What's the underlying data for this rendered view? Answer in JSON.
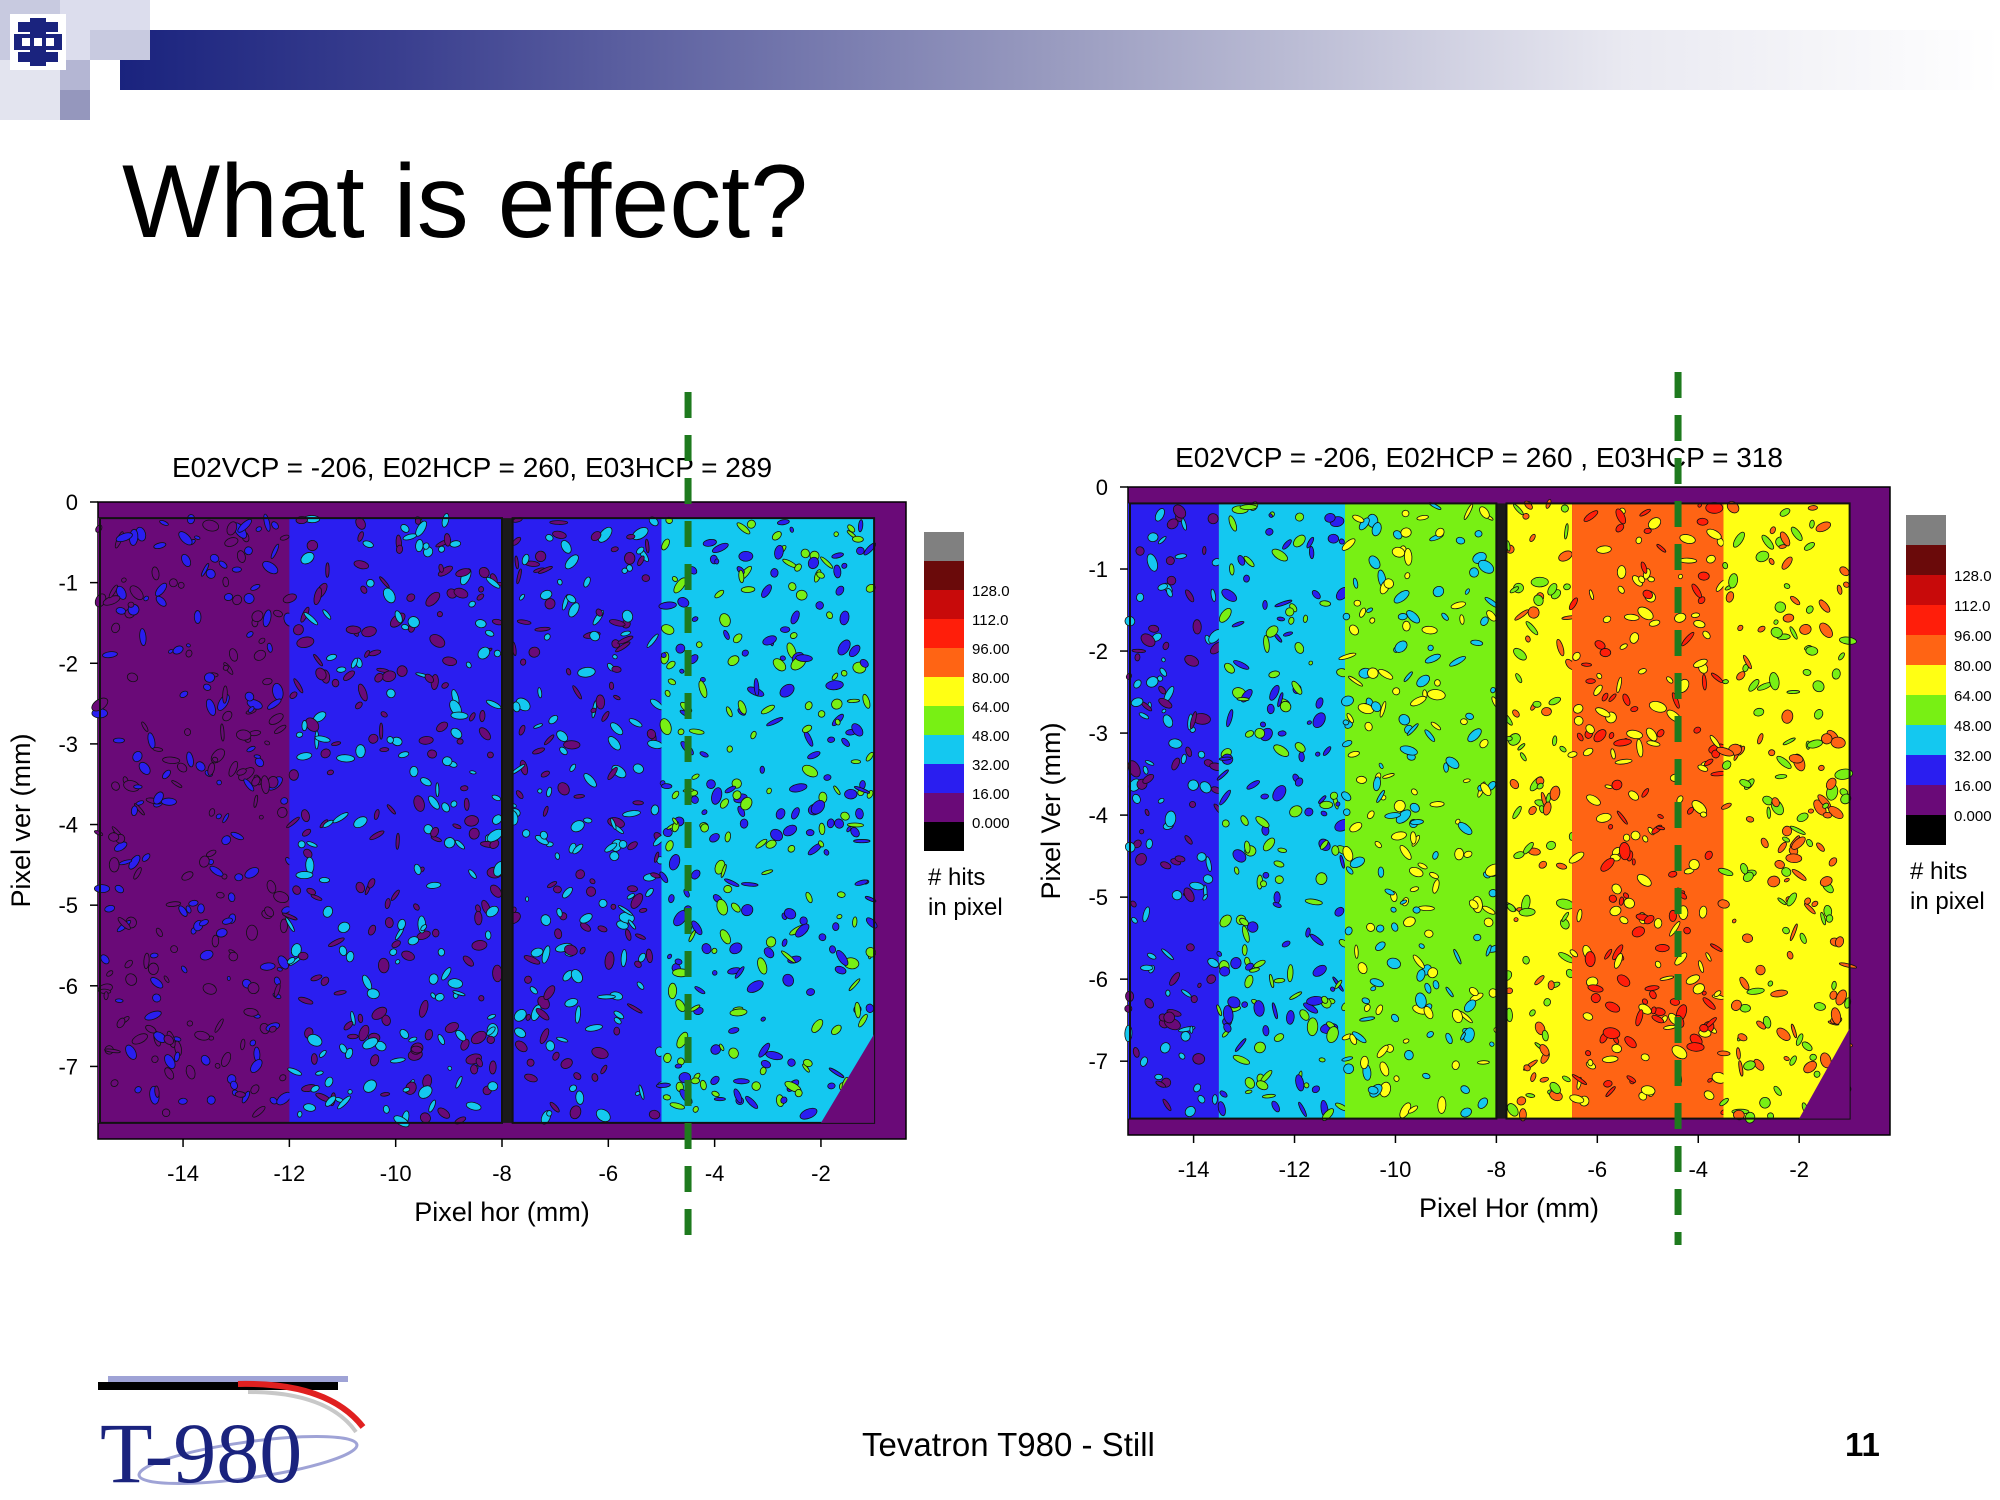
{
  "slide": {
    "title": "What is effect?",
    "footer": "Tevatron T980 - Still",
    "page_number": "11",
    "logo_text": "T-980"
  },
  "colors": {
    "accent": "#1a237e",
    "guide_line": "#1e7a1e",
    "scale": [
      "#000000",
      "#6a0a78",
      "#2a1ef0",
      "#14c8f0",
      "#78f014",
      "#ffff14",
      "#ff6414",
      "#ff1e0a",
      "#c80a0a",
      "#6a0a0a",
      "#808080"
    ]
  },
  "chart_data": [
    {
      "type": "heatmap",
      "title": "E02VCP = -206, E02HCP = 260, E03HCP = 289",
      "xlabel": "Pixel hor (mm)",
      "ylabel": "Pixel ver (mm)",
      "xlim": [
        -15.6,
        -0.4
      ],
      "ylim": [
        -7.9,
        0
      ],
      "xticks": [
        "-14",
        "-12",
        "-10",
        "-8",
        "-6",
        "-4",
        "-2"
      ],
      "yticks": [
        "0",
        "-1",
        "-2",
        "-3",
        "-4",
        "-5",
        "-6",
        "-7"
      ],
      "colorbar": {
        "levels": [
          "128.0",
          "112.0",
          "96.00",
          "80.00",
          "64.00",
          "48.00",
          "32.00",
          "16.00",
          "0.000"
        ],
        "label_line1": "# hits",
        "label_line2": "in pixel"
      },
      "regions": [
        {
          "x": [
            -15.6,
            -12.0
          ],
          "level": "0-16"
        },
        {
          "x": [
            -12.0,
            -8.0
          ],
          "level": "16-32"
        },
        {
          "x": [
            -7.8,
            -5.0
          ],
          "level": "16-32"
        },
        {
          "x": [
            -5.0,
            -1.0
          ],
          "level": "32-48"
        }
      ],
      "guide_line_x": -4.5
    },
    {
      "type": "heatmap",
      "title": "E02VCP = -206, E02HCP = 260 , E03HCP = 318",
      "xlabel": "Pixel Hor (mm)",
      "ylabel": "Pixel Ver (mm)",
      "xlim": [
        -15.3,
        -0.2
      ],
      "ylim": [
        -7.9,
        0
      ],
      "xticks": [
        "-14",
        "-12",
        "-10",
        "-8",
        "-6",
        "-4",
        "-2"
      ],
      "yticks": [
        "0",
        "-1",
        "-2",
        "-3",
        "-4",
        "-5",
        "-6",
        "-7"
      ],
      "colorbar": {
        "levels": [
          "128.0",
          "112.0",
          "96.00",
          "80.00",
          "64.00",
          "48.00",
          "32.00",
          "16.00",
          "0.000"
        ],
        "label_line1": "# hits",
        "label_line2": "in pixel"
      },
      "regions": [
        {
          "x": [
            -15.3,
            -13.5
          ],
          "level": "16-32"
        },
        {
          "x": [
            -13.5,
            -11.0
          ],
          "level": "32-48"
        },
        {
          "x": [
            -11.0,
            -8.0
          ],
          "level": "48-64"
        },
        {
          "x": [
            -7.8,
            -6.5
          ],
          "level": "64-80"
        },
        {
          "x": [
            -6.5,
            -3.5
          ],
          "level": "80-96"
        },
        {
          "x": [
            -3.5,
            -1.0
          ],
          "level": "64-80"
        }
      ],
      "guide_line_x": -4.4
    }
  ]
}
